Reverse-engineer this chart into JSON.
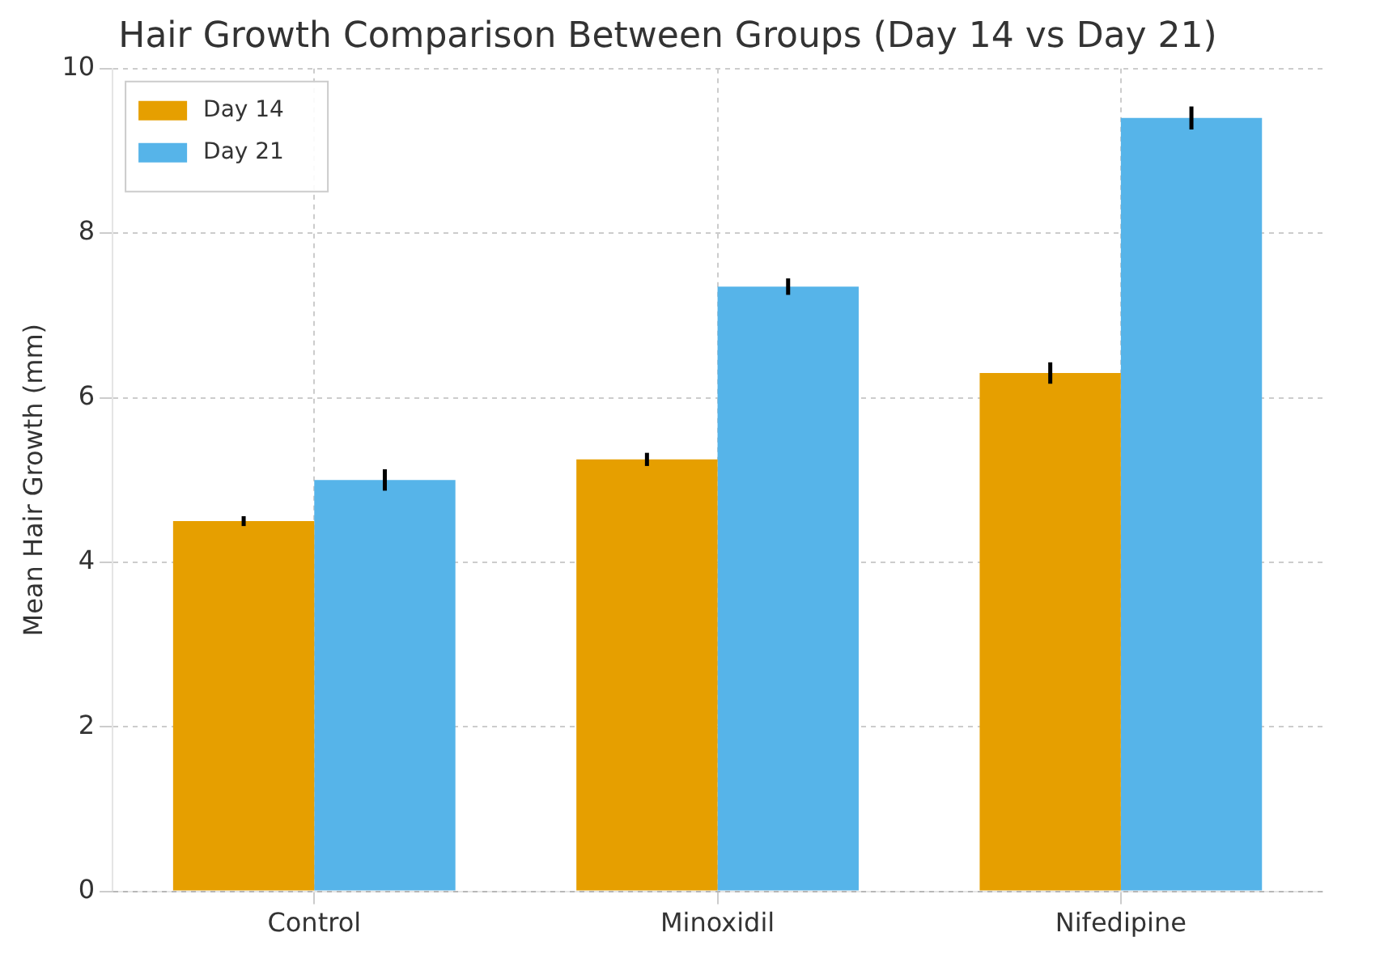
{
  "chart_data": {
    "type": "bar",
    "title": "Hair Growth Comparison Between Groups (Day 14 vs Day 21)",
    "ylabel": "Mean Hair Growth (mm)",
    "categories": [
      "Control",
      "Minoxidil",
      "Nifedipine"
    ],
    "series": [
      {
        "name": "Day 14",
        "color": "#e69f00",
        "values": [
          4.5,
          5.25,
          6.3
        ],
        "errors": [
          0.06,
          0.08,
          0.13
        ]
      },
      {
        "name": "Day 21",
        "color": "#56b4e9",
        "values": [
          5.0,
          7.35,
          9.4
        ],
        "errors": [
          0.13,
          0.1,
          0.14
        ]
      }
    ],
    "ylim": [
      0,
      10
    ],
    "yticks": [
      0,
      2,
      4,
      6,
      8,
      10
    ],
    "grid": true,
    "legend": "top left"
  }
}
